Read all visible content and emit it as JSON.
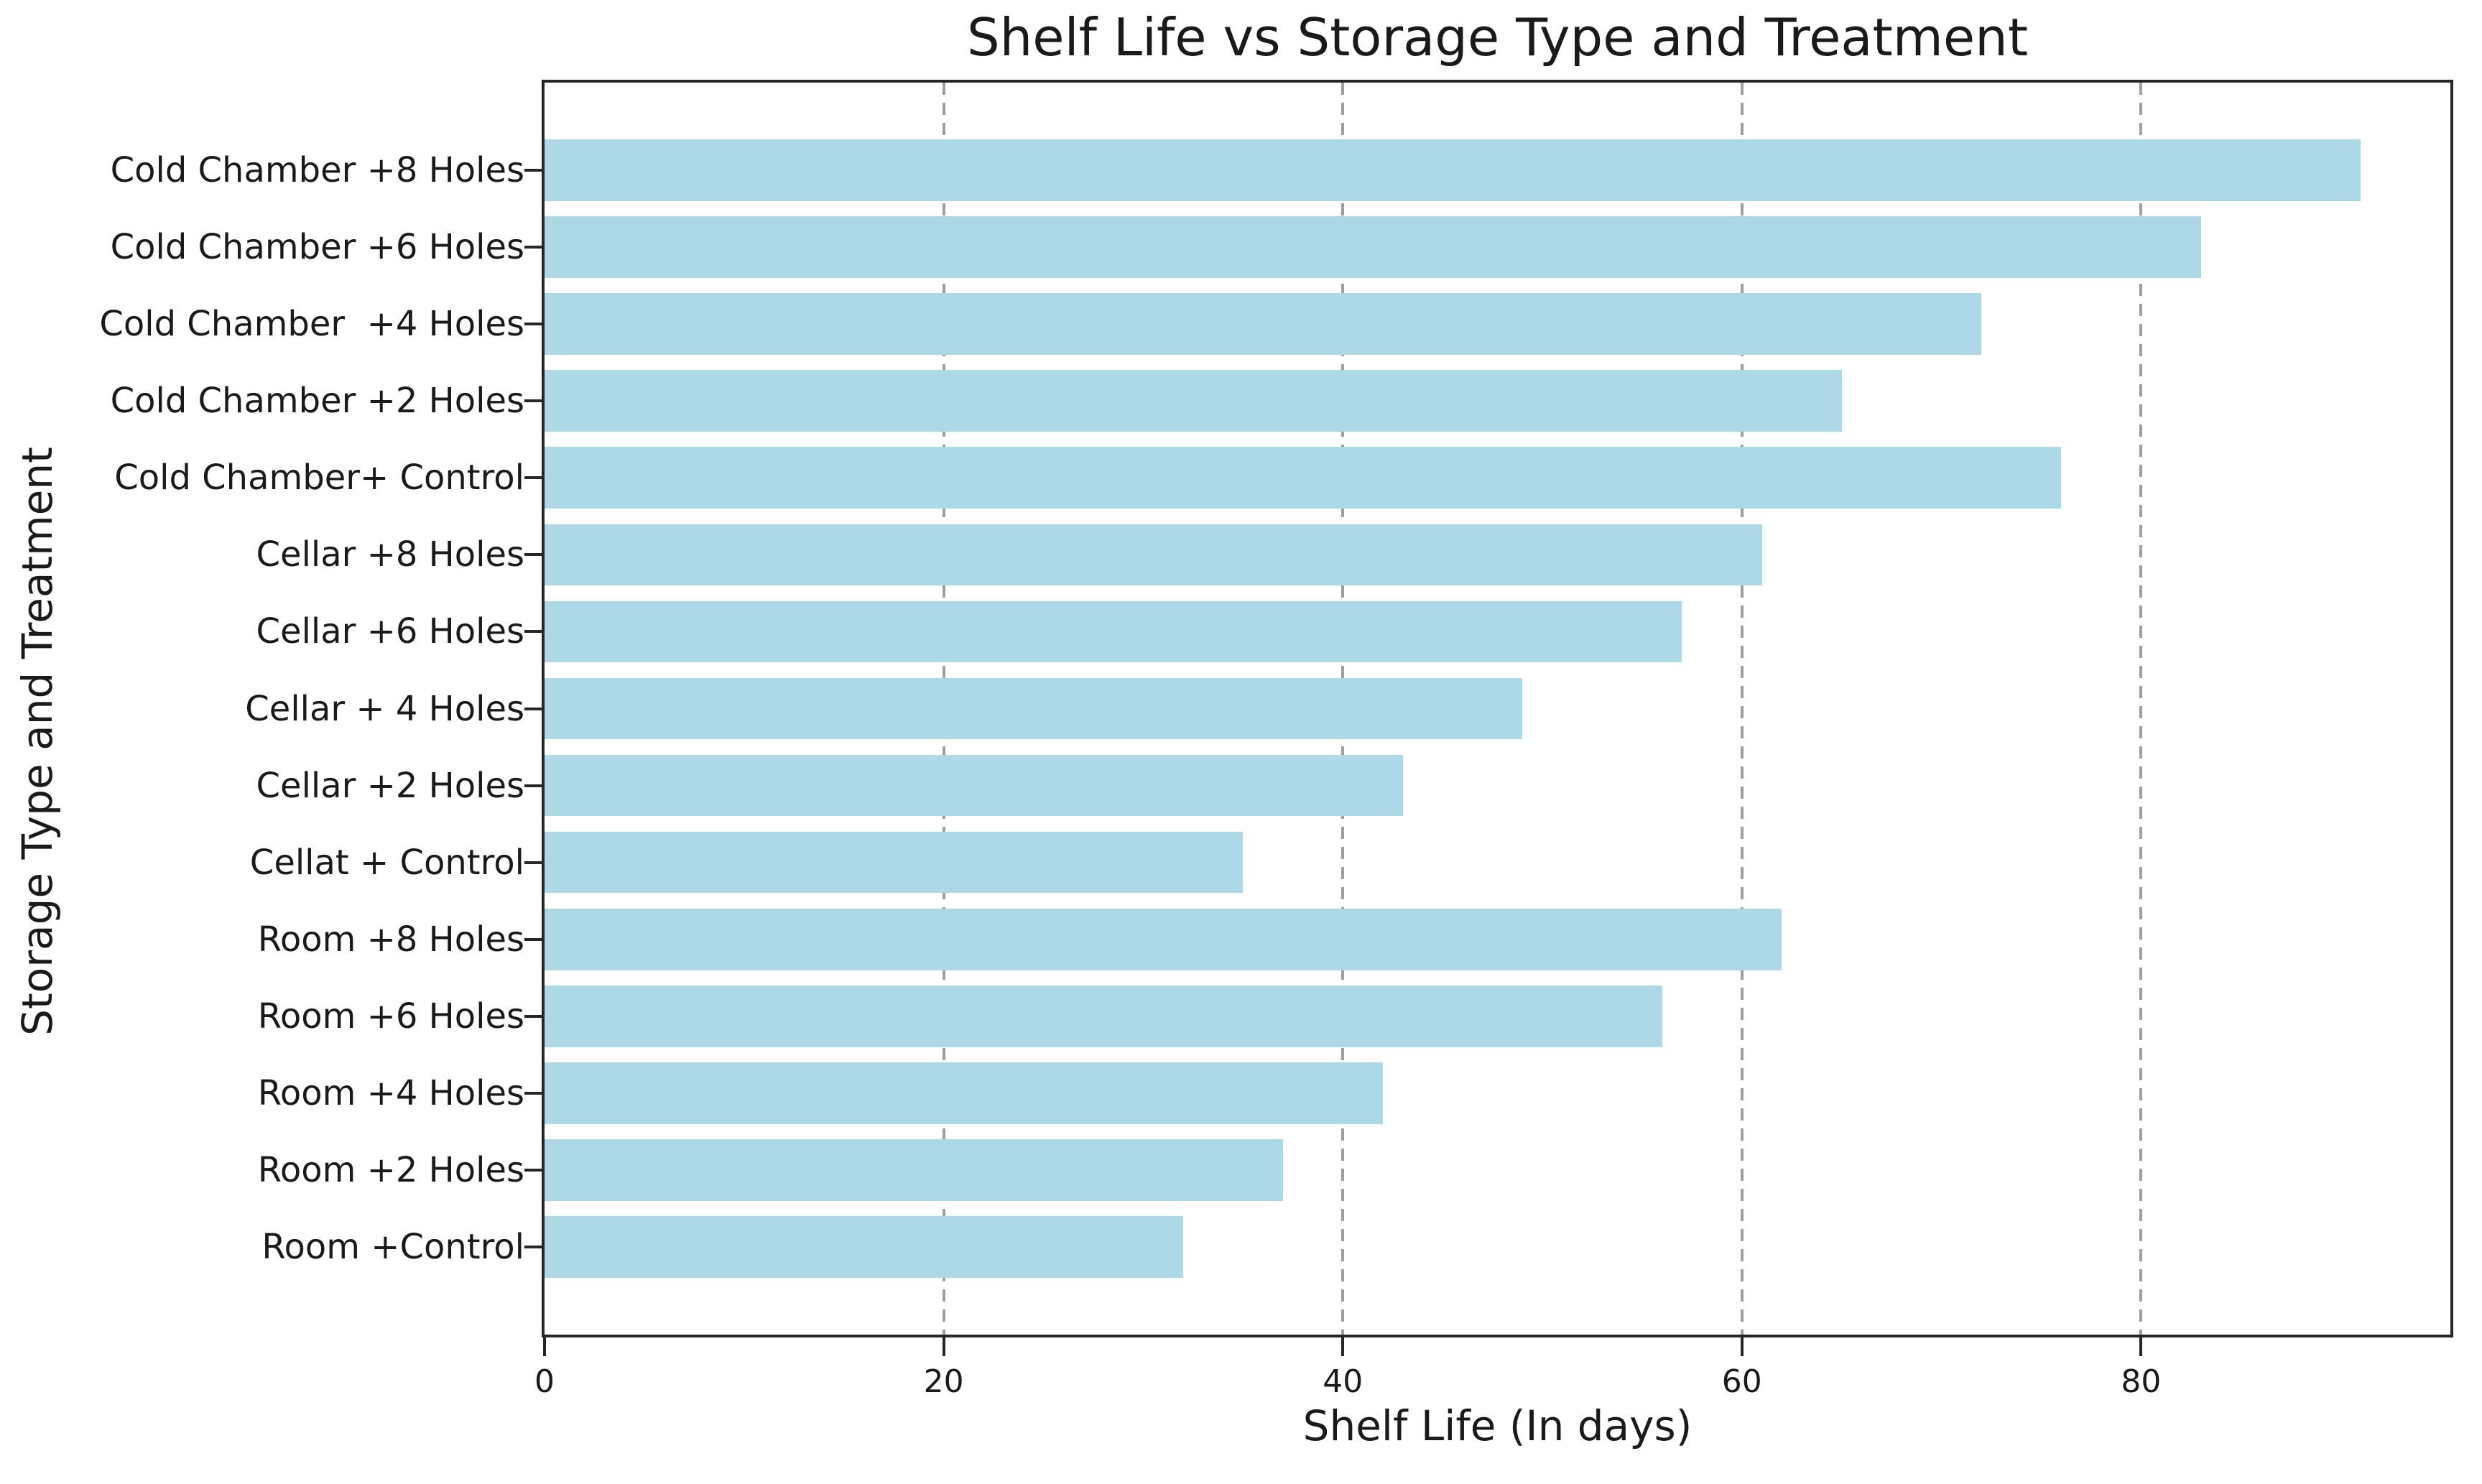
{
  "chart_data": {
    "type": "bar",
    "orientation": "horizontal",
    "title": "Shelf Life vs Storage Type and Treatment",
    "xlabel": "Shelf Life (In days)",
    "ylabel": "Storage Type and Treatment",
    "categories": [
      "Cold Chamber +8 Holes",
      "Cold Chamber +6 Holes",
      "Cold Chamber  +4 Holes",
      "Cold Chamber +2 Holes",
      "Cold Chamber+ Control",
      "Cellar +8 Holes",
      "Cellar +6 Holes",
      "Cellar + 4 Holes",
      "Cellar +2 Holes",
      "Cellat + Control",
      "Room +8 Holes",
      "Room +6 Holes",
      "Room +4 Holes",
      "Room +2 Holes",
      "Room +Control"
    ],
    "values": [
      91,
      83,
      72,
      65,
      76,
      61,
      57,
      49,
      43,
      35,
      62,
      56,
      42,
      37,
      32
    ],
    "xticks": [
      0,
      20,
      40,
      60,
      80
    ],
    "xtick_labels": [
      "0",
      "20",
      "40",
      "60",
      "80"
    ],
    "xlim": [
      0,
      95.5
    ],
    "grid": {
      "axis": "x",
      "style": "dashed"
    },
    "legend_position": "none",
    "bar_color": "#ADD8E6"
  },
  "colors": {
    "bar": "#ADD8E6",
    "grid": "#9e9e9e",
    "spine": "#262626",
    "text": "#1a1a1a",
    "background": "#ffffff"
  }
}
